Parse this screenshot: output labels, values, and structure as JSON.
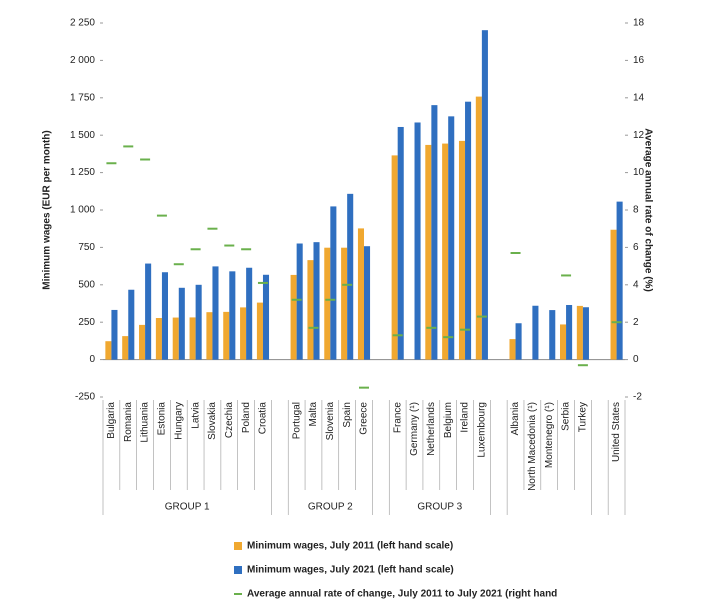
{
  "chart_data": {
    "type": "bar",
    "y_label": "Minimum wages (EUR per month)",
    "y2_label": "Average annual rate of change (%)",
    "categories": [
      "Bulgaria",
      "Romania",
      "Lithuania",
      "Estonia",
      "Hungary",
      "Latvia",
      "Slovakia",
      "Czechia",
      "Poland",
      "Croatia",
      null,
      "Portugal",
      "Malta",
      "Slovenia",
      "Spain",
      "Greece",
      null,
      "France",
      "Germany (¹)",
      "Netherlands",
      "Belgium",
      "Ireland",
      "Luxembourg",
      null,
      "Albania",
      "North Macedonia (¹)",
      "Montenegro (¹)",
      "Serbia",
      "Turkey",
      null,
      "United States"
    ],
    "group_labels": [
      "GROUP 1",
      "GROUP 2",
      "GROUP 3"
    ],
    "series": [
      {
        "name": "Minimum wages, July 2011 (left hand scale)",
        "color": "#f0a830",
        "values": [
          123,
          157,
          232,
          278,
          281,
          282,
          317,
          319,
          349,
          381,
          null,
          566,
          665,
          748,
          748,
          877,
          null,
          1365,
          null,
          1435,
          1444,
          1462,
          1758,
          null,
          137,
          null,
          null,
          235,
          359,
          null,
          868
        ]
      },
      {
        "name": "Minimum wages, July 2021 (left hand scale)",
        "color": "#2f6fc0",
        "values": [
          332,
          467,
          642,
          584,
          480,
          500,
          623,
          590,
          614,
          567,
          null,
          776,
          785,
          1024,
          1108,
          758,
          null,
          1555,
          1585,
          1701,
          1626,
          1724,
          2202,
          null,
          243,
          360,
          331,
          365,
          350,
          null,
          1056
        ]
      },
      {
        "name": "Average annual rate of change, July 2011 to July 2021 (right hand",
        "color": "#6ab04c",
        "axis": "y2",
        "marker": "dash",
        "values": [
          10.5,
          11.4,
          10.7,
          7.7,
          5.1,
          5.9,
          7.0,
          6.1,
          5.9,
          4.1,
          null,
          3.2,
          1.7,
          3.2,
          4.0,
          -1.5,
          null,
          1.3,
          null,
          1.7,
          1.2,
          1.6,
          2.3,
          null,
          5.7,
          null,
          null,
          4.5,
          -0.3,
          null,
          2.0
        ]
      }
    ],
    "ylim": [
      -250,
      2250
    ],
    "yticks": [
      -250,
      0,
      250,
      500,
      750,
      {
        "value": 1000,
        "label": "1 000"
      },
      {
        "value": 1250,
        "label": "1 250"
      },
      {
        "value": 1500,
        "label": "1 500"
      },
      {
        "value": 1750,
        "label": "1 750"
      },
      {
        "value": 2000,
        "label": "2 000"
      },
      {
        "value": 2250,
        "label": "2 250"
      }
    ],
    "y2lim": [
      -2,
      18
    ],
    "y2ticks": [
      -2,
      0,
      2,
      4,
      6,
      8,
      10,
      12,
      14,
      16,
      18
    ],
    "grid": false
  }
}
